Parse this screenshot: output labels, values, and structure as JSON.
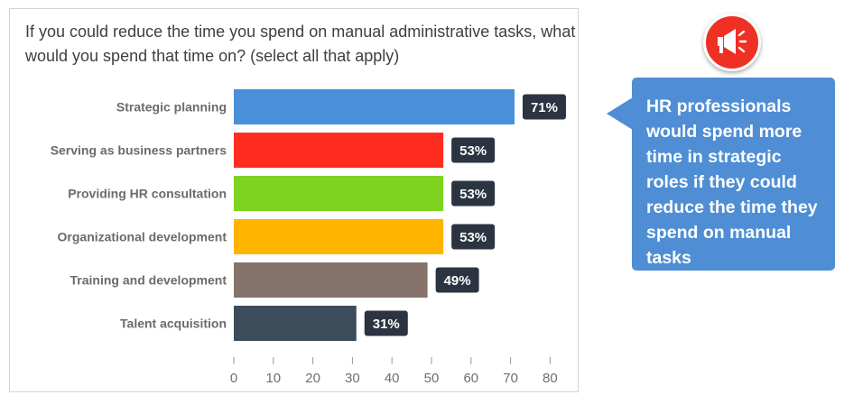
{
  "callout": {
    "text": "HR professionals would spend more time in strategic roles if they could reduce the time they spend on manual tasks",
    "icon": "megaphone-icon",
    "background_color": "#4f8ed4",
    "badge_color": "#ee3124"
  },
  "chart_data": {
    "type": "bar",
    "orientation": "horizontal",
    "title": "If you could reduce the time you spend on manual administrative tasks, what would you spend that time on? (select all that apply)",
    "categories": [
      "Strategic planning",
      "Serving as business partners",
      "Providing HR consultation",
      "Organizational development",
      "Training and development",
      "Talent acquisition"
    ],
    "values": [
      71,
      53,
      53,
      53,
      49,
      31
    ],
    "value_labels": [
      "71%",
      "53%",
      "53%",
      "53%",
      "49%",
      "31%"
    ],
    "colors": [
      "#4a90d9",
      "#ff2d1f",
      "#7ed321",
      "#ffb400",
      "#86736b",
      "#3d4c5a"
    ],
    "xlim": [
      0,
      80
    ],
    "xticks": [
      0,
      10,
      20,
      30,
      40,
      50,
      60,
      70,
      80
    ],
    "xlabel": "",
    "ylabel": "",
    "grid": false,
    "legend": "none",
    "label_box_color": "#2b3440"
  }
}
